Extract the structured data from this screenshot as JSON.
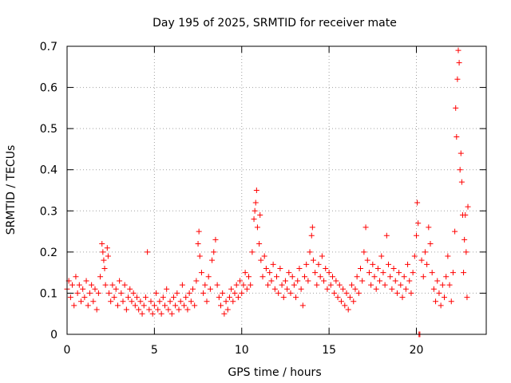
{
  "chart_data": {
    "type": "scatter",
    "title": "Day 195 of 2025, SRMTID for receiver mate",
    "xlabel": "GPS time / hours",
    "ylabel": "SRMTID / TECUs",
    "xlim": [
      0,
      24
    ],
    "ylim": [
      0,
      0.7
    ],
    "xticks": [
      0,
      5,
      10,
      15,
      20
    ],
    "xtick_labels": [
      "0",
      "5",
      "10",
      "15",
      "20"
    ],
    "yticks": [
      0,
      0.1,
      0.2,
      0.3,
      0.4,
      0.5,
      0.6,
      0.7
    ],
    "ytick_labels": [
      "0",
      "0.1",
      "0.2",
      "0.3",
      "0.4",
      "0.5",
      "0.6",
      "0.7"
    ],
    "grid": true,
    "marker": "+",
    "color": "#ff0000",
    "series": [
      {
        "name": "SRMTID",
        "points": [
          [
            0.0,
            0.11
          ],
          [
            0.1,
            0.13
          ],
          [
            0.2,
            0.09
          ],
          [
            0.3,
            0.12
          ],
          [
            0.4,
            0.07
          ],
          [
            0.5,
            0.14
          ],
          [
            0.6,
            0.1
          ],
          [
            0.7,
            0.12
          ],
          [
            0.8,
            0.08
          ],
          [
            0.9,
            0.11
          ],
          [
            1.0,
            0.09
          ],
          [
            1.1,
            0.13
          ],
          [
            1.2,
            0.07
          ],
          [
            1.3,
            0.1
          ],
          [
            1.4,
            0.12
          ],
          [
            1.5,
            0.08
          ],
          [
            1.6,
            0.11
          ],
          [
            1.7,
            0.06
          ],
          [
            1.8,
            0.1
          ],
          [
            1.9,
            0.14
          ],
          [
            2.0,
            0.22
          ],
          [
            2.05,
            0.2
          ],
          [
            2.1,
            0.18
          ],
          [
            2.15,
            0.16
          ],
          [
            2.2,
            0.12
          ],
          [
            2.3,
            0.21
          ],
          [
            2.35,
            0.19
          ],
          [
            2.4,
            0.1
          ],
          [
            2.5,
            0.08
          ],
          [
            2.6,
            0.12
          ],
          [
            2.7,
            0.09
          ],
          [
            2.8,
            0.11
          ],
          [
            2.9,
            0.07
          ],
          [
            3.0,
            0.13
          ],
          [
            3.1,
            0.1
          ],
          [
            3.2,
            0.08
          ],
          [
            3.3,
            0.12
          ],
          [
            3.4,
            0.06
          ],
          [
            3.5,
            0.09
          ],
          [
            3.6,
            0.11
          ],
          [
            3.7,
            0.08
          ],
          [
            3.8,
            0.1
          ],
          [
            3.9,
            0.07
          ],
          [
            4.0,
            0.09
          ],
          [
            4.1,
            0.06
          ],
          [
            4.2,
            0.08
          ],
          [
            4.3,
            0.05
          ],
          [
            4.4,
            0.07
          ],
          [
            4.5,
            0.09
          ],
          [
            4.6,
            0.2
          ],
          [
            4.7,
            0.06
          ],
          [
            4.8,
            0.08
          ],
          [
            4.9,
            0.05
          ],
          [
            5.0,
            0.07
          ],
          [
            5.1,
            0.1
          ],
          [
            5.2,
            0.06
          ],
          [
            5.3,
            0.08
          ],
          [
            5.4,
            0.05
          ],
          [
            5.5,
            0.09
          ],
          [
            5.6,
            0.07
          ],
          [
            5.7,
            0.11
          ],
          [
            5.8,
            0.06
          ],
          [
            5.9,
            0.08
          ],
          [
            6.0,
            0.05
          ],
          [
            6.1,
            0.09
          ],
          [
            6.2,
            0.07
          ],
          [
            6.3,
            0.1
          ],
          [
            6.4,
            0.06
          ],
          [
            6.5,
            0.08
          ],
          [
            6.6,
            0.12
          ],
          [
            6.7,
            0.07
          ],
          [
            6.8,
            0.09
          ],
          [
            6.9,
            0.06
          ],
          [
            7.0,
            0.1
          ],
          [
            7.1,
            0.08
          ],
          [
            7.2,
            0.11
          ],
          [
            7.3,
            0.07
          ],
          [
            7.4,
            0.13
          ],
          [
            7.5,
            0.22
          ],
          [
            7.55,
            0.25
          ],
          [
            7.6,
            0.19
          ],
          [
            7.7,
            0.15
          ],
          [
            7.8,
            0.1
          ],
          [
            7.9,
            0.12
          ],
          [
            8.0,
            0.08
          ],
          [
            8.1,
            0.14
          ],
          [
            8.2,
            0.11
          ],
          [
            8.3,
            0.18
          ],
          [
            8.4,
            0.2
          ],
          [
            8.5,
            0.23
          ],
          [
            8.6,
            0.12
          ],
          [
            8.7,
            0.09
          ],
          [
            8.8,
            0.07
          ],
          [
            8.9,
            0.1
          ],
          [
            9.0,
            0.05
          ],
          [
            9.1,
            0.08
          ],
          [
            9.2,
            0.06
          ],
          [
            9.3,
            0.09
          ],
          [
            9.4,
            0.11
          ],
          [
            9.5,
            0.08
          ],
          [
            9.6,
            0.1
          ],
          [
            9.7,
            0.12
          ],
          [
            9.8,
            0.09
          ],
          [
            9.9,
            0.13
          ],
          [
            10.0,
            0.1
          ],
          [
            10.1,
            0.12
          ],
          [
            10.2,
            0.15
          ],
          [
            10.3,
            0.11
          ],
          [
            10.4,
            0.14
          ],
          [
            10.5,
            0.12
          ],
          [
            10.6,
            0.2
          ],
          [
            10.7,
            0.28
          ],
          [
            10.75,
            0.3
          ],
          [
            10.8,
            0.32
          ],
          [
            10.85,
            0.35
          ],
          [
            10.9,
            0.26
          ],
          [
            11.0,
            0.22
          ],
          [
            11.05,
            0.29
          ],
          [
            11.1,
            0.18
          ],
          [
            11.2,
            0.14
          ],
          [
            11.3,
            0.19
          ],
          [
            11.4,
            0.16
          ],
          [
            11.5,
            0.12
          ],
          [
            11.6,
            0.15
          ],
          [
            11.7,
            0.13
          ],
          [
            11.8,
            0.17
          ],
          [
            11.9,
            0.11
          ],
          [
            12.0,
            0.14
          ],
          [
            12.1,
            0.1
          ],
          [
            12.2,
            0.16
          ],
          [
            12.3,
            0.12
          ],
          [
            12.4,
            0.09
          ],
          [
            12.5,
            0.13
          ],
          [
            12.6,
            0.11
          ],
          [
            12.7,
            0.15
          ],
          [
            12.8,
            0.1
          ],
          [
            12.9,
            0.14
          ],
          [
            13.0,
            0.12
          ],
          [
            13.1,
            0.09
          ],
          [
            13.2,
            0.13
          ],
          [
            13.3,
            0.16
          ],
          [
            13.4,
            0.11
          ],
          [
            13.5,
            0.07
          ],
          [
            13.6,
            0.14
          ],
          [
            13.7,
            0.17
          ],
          [
            13.8,
            0.13
          ],
          [
            13.9,
            0.2
          ],
          [
            14.0,
            0.24
          ],
          [
            14.05,
            0.26
          ],
          [
            14.1,
            0.18
          ],
          [
            14.2,
            0.15
          ],
          [
            14.3,
            0.12
          ],
          [
            14.4,
            0.17
          ],
          [
            14.5,
            0.14
          ],
          [
            14.6,
            0.19
          ],
          [
            14.7,
            0.13
          ],
          [
            14.8,
            0.16
          ],
          [
            14.9,
            0.11
          ],
          [
            15.0,
            0.15
          ],
          [
            15.1,
            0.12
          ],
          [
            15.2,
            0.14
          ],
          [
            15.3,
            0.1
          ],
          [
            15.4,
            0.13
          ],
          [
            15.5,
            0.09
          ],
          [
            15.6,
            0.12
          ],
          [
            15.7,
            0.08
          ],
          [
            15.8,
            0.11
          ],
          [
            15.9,
            0.07
          ],
          [
            16.0,
            0.1
          ],
          [
            16.1,
            0.06
          ],
          [
            16.2,
            0.09
          ],
          [
            16.3,
            0.12
          ],
          [
            16.4,
            0.08
          ],
          [
            16.5,
            0.11
          ],
          [
            16.6,
            0.14
          ],
          [
            16.7,
            0.1
          ],
          [
            16.8,
            0.16
          ],
          [
            16.9,
            0.13
          ],
          [
            17.0,
            0.2
          ],
          [
            17.1,
            0.26
          ],
          [
            17.2,
            0.18
          ],
          [
            17.3,
            0.15
          ],
          [
            17.4,
            0.12
          ],
          [
            17.5,
            0.17
          ],
          [
            17.6,
            0.14
          ],
          [
            17.7,
            0.11
          ],
          [
            17.8,
            0.16
          ],
          [
            17.9,
            0.13
          ],
          [
            18.0,
            0.19
          ],
          [
            18.1,
            0.15
          ],
          [
            18.2,
            0.12
          ],
          [
            18.3,
            0.24
          ],
          [
            18.4,
            0.17
          ],
          [
            18.5,
            0.14
          ],
          [
            18.6,
            0.11
          ],
          [
            18.7,
            0.16
          ],
          [
            18.8,
            0.13
          ],
          [
            18.9,
            0.1
          ],
          [
            19.0,
            0.15
          ],
          [
            19.1,
            0.12
          ],
          [
            19.2,
            0.09
          ],
          [
            19.3,
            0.14
          ],
          [
            19.4,
            0.11
          ],
          [
            19.5,
            0.17
          ],
          [
            19.6,
            0.13
          ],
          [
            19.7,
            0.1
          ],
          [
            19.8,
            0.15
          ],
          [
            19.9,
            0.19
          ],
          [
            20.0,
            0.24
          ],
          [
            20.05,
            0.32
          ],
          [
            20.1,
            0.27
          ],
          [
            20.15,
            0.0
          ],
          [
            20.2,
            0.0
          ],
          [
            20.3,
            0.18
          ],
          [
            20.4,
            0.14
          ],
          [
            20.5,
            0.2
          ],
          [
            20.6,
            0.17
          ],
          [
            20.7,
            0.26
          ],
          [
            20.8,
            0.22
          ],
          [
            20.9,
            0.15
          ],
          [
            21.0,
            0.11
          ],
          [
            21.1,
            0.08
          ],
          [
            21.2,
            0.13
          ],
          [
            21.3,
            0.1
          ],
          [
            21.4,
            0.07
          ],
          [
            21.5,
            0.12
          ],
          [
            21.6,
            0.09
          ],
          [
            21.7,
            0.14
          ],
          [
            21.8,
            0.19
          ],
          [
            21.9,
            0.12
          ],
          [
            22.0,
            0.08
          ],
          [
            22.1,
            0.15
          ],
          [
            22.2,
            0.25
          ],
          [
            22.25,
            0.55
          ],
          [
            22.3,
            0.48
          ],
          [
            22.35,
            0.62
          ],
          [
            22.4,
            0.69
          ],
          [
            22.45,
            0.66
          ],
          [
            22.5,
            0.4
          ],
          [
            22.55,
            0.44
          ],
          [
            22.6,
            0.37
          ],
          [
            22.65,
            0.29
          ],
          [
            22.7,
            0.15
          ],
          [
            22.75,
            0.23
          ],
          [
            22.8,
            0.29
          ],
          [
            22.85,
            0.2
          ],
          [
            22.9,
            0.09
          ],
          [
            22.95,
            0.31
          ]
        ]
      }
    ]
  }
}
